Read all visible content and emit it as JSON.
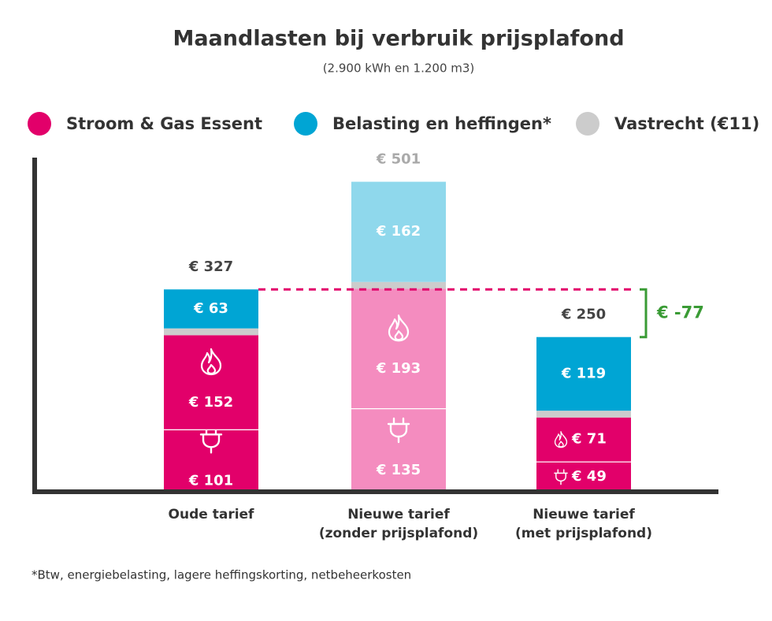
{
  "chart_data": {
    "type": "stacked-bar",
    "title": "Maandlasten bij verbruik prijsplafond",
    "subtitle": "(2.900 kWh en 1.200 m3)",
    "legend": [
      {
        "name": "Stroom & Gas Essent",
        "color": "#e2006a"
      },
      {
        "name": "Belasting en heffingen*",
        "color": "#00a5d4"
      },
      {
        "name": "Vastrecht (€11)",
        "color": "#cccccc"
      }
    ],
    "categories": [
      "Oude tarief",
      "Nieuwe tarief\n(zonder prijsplafond)",
      "Nieuwe tarief\n(met prijsplafond)"
    ],
    "series": [
      {
        "colors": [
          "#e2006a",
          "#f48cbf",
          "#e2006a"
        ],
        "values": [
          101,
          135,
          49
        ],
        "value_labels": [
          "€ 101",
          "€ 135",
          "€ 49"
        ]
      },
      {
        "colors": [
          "#e2006a",
          "#f48cbf",
          "#e2006a"
        ],
        "values": [
          152,
          193,
          71
        ],
        "value_labels": [
          "€ 152",
          "€ 193",
          "€ 71"
        ]
      },
      {
        "colors": [
          "#cccccc",
          "#cccccc",
          "#cccccc"
        ],
        "values": [
          11,
          11,
          11
        ]
      },
      {
        "colors": [
          "#00a5d4",
          "#8fd8ec",
          "#00a5d4"
        ],
        "values": [
          63,
          162,
          119
        ],
        "value_labels": [
          "€ 63",
          "€ 162",
          "€ 119"
        ]
      }
    ],
    "totals": [
      327,
      501,
      250
    ],
    "total_labels": [
      "€ 327",
      "€ 501",
      "€ 250"
    ],
    "total_colors": [
      "#444444",
      "#aaaaaa",
      "#444444"
    ],
    "annotation": {
      "value": -77,
      "label": "€ -77",
      "color": "#3a9b35"
    },
    "ylim": [
      0,
      540
    ],
    "footnote": "*Btw, energiebelasting, lagere heffingskorting, netbeheerkosten"
  }
}
